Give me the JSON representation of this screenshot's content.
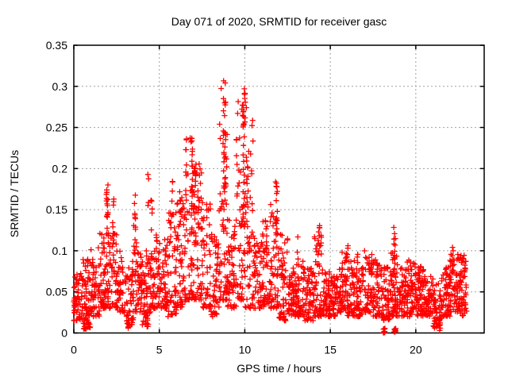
{
  "chart_data": {
    "type": "scatter",
    "title": "Day 071 of 2020, SRMTID for receiver gasc",
    "xlabel": "GPS time / hours",
    "ylabel": "SRMTID / TECUs",
    "xlim": [
      0,
      24
    ],
    "ylim": [
      0,
      0.35
    ],
    "xticks": [
      0,
      5,
      10,
      15,
      20
    ],
    "xtick_labels": [
      "0",
      "5",
      "10",
      "15",
      "20"
    ],
    "yticks": [
      0,
      0.05,
      0.1,
      0.15,
      0.2,
      0.25,
      0.3,
      0.35
    ],
    "ytick_labels": [
      "0",
      "0.05",
      "0.1",
      "0.15",
      "0.2",
      "0.25",
      "0.3",
      "0.35"
    ],
    "grid": true,
    "legend": "none",
    "marker": "plus",
    "marker_color": "#ff0000",
    "grid_color": "#a0a0a0",
    "border_color": "#000000",
    "observed_max": {
      "time_hours": 8.8,
      "value_tecu": 0.313
    },
    "data_time_range_hours": [
      0,
      23.0
    ],
    "seed": 20200071,
    "band_bins": [
      [
        0.0,
        0.5,
        60,
        0.015,
        0.075,
        1.5
      ],
      [
        0.5,
        1.0,
        60,
        0.005,
        0.09,
        1.6
      ],
      [
        1.0,
        1.5,
        55,
        0.02,
        0.105,
        1.5
      ],
      [
        1.5,
        2.0,
        55,
        0.03,
        0.13,
        1.5
      ],
      [
        2.0,
        2.5,
        52,
        0.03,
        0.125,
        1.5
      ],
      [
        2.5,
        3.0,
        48,
        0.025,
        0.1,
        1.5
      ],
      [
        3.0,
        3.5,
        48,
        0.01,
        0.09,
        1.5
      ],
      [
        3.5,
        4.0,
        52,
        0.025,
        0.11,
        1.5
      ],
      [
        4.0,
        4.5,
        52,
        0.01,
        0.1,
        1.5
      ],
      [
        4.5,
        5.0,
        54,
        0.03,
        0.12,
        1.5
      ],
      [
        5.0,
        5.5,
        58,
        0.03,
        0.125,
        1.4
      ],
      [
        5.5,
        6.0,
        52,
        0.02,
        0.15,
        1.5
      ],
      [
        6.0,
        6.5,
        52,
        0.03,
        0.175,
        1.6
      ],
      [
        6.5,
        7.0,
        56,
        0.04,
        0.24,
        1.8
      ],
      [
        7.0,
        7.5,
        52,
        0.04,
        0.21,
        1.8
      ],
      [
        7.5,
        8.0,
        48,
        0.03,
        0.16,
        1.6
      ],
      [
        8.0,
        8.5,
        44,
        0.02,
        0.12,
        1.5
      ],
      [
        8.5,
        9.0,
        56,
        0.04,
        0.3,
        1.9
      ],
      [
        9.0,
        9.5,
        46,
        0.03,
        0.14,
        1.6
      ],
      [
        9.5,
        10.0,
        56,
        0.04,
        0.29,
        1.9
      ],
      [
        10.0,
        10.5,
        50,
        0.03,
        0.28,
        2.1
      ],
      [
        10.5,
        11.0,
        48,
        0.03,
        0.12,
        1.5
      ],
      [
        11.0,
        11.5,
        52,
        0.03,
        0.14,
        1.5
      ],
      [
        11.5,
        12.0,
        52,
        0.03,
        0.17,
        1.7
      ],
      [
        12.0,
        12.5,
        52,
        0.015,
        0.12,
        1.6
      ],
      [
        12.5,
        13.0,
        56,
        0.02,
        0.08,
        1.4
      ],
      [
        13.0,
        13.5,
        52,
        0.02,
        0.09,
        1.5
      ],
      [
        13.5,
        14.0,
        52,
        0.015,
        0.08,
        1.4
      ],
      [
        14.0,
        14.5,
        52,
        0.02,
        0.12,
        1.6
      ],
      [
        14.5,
        15.0,
        52,
        0.02,
        0.08,
        1.4
      ],
      [
        15.0,
        15.5,
        52,
        0.02,
        0.07,
        1.3
      ],
      [
        15.5,
        16.0,
        56,
        0.025,
        0.1,
        1.5
      ],
      [
        16.0,
        16.5,
        52,
        0.02,
        0.09,
        1.4
      ],
      [
        16.5,
        17.0,
        52,
        0.02,
        0.08,
        1.4
      ],
      [
        17.0,
        17.5,
        52,
        0.025,
        0.1,
        1.5
      ],
      [
        17.5,
        18.0,
        52,
        0.02,
        0.09,
        1.4
      ],
      [
        18.0,
        18.5,
        52,
        0.015,
        0.08,
        1.4
      ],
      [
        18.5,
        19.0,
        56,
        0.02,
        0.11,
        1.6
      ],
      [
        19.0,
        19.5,
        52,
        0.02,
        0.08,
        1.4
      ],
      [
        19.5,
        20.0,
        56,
        0.02,
        0.09,
        1.4
      ],
      [
        20.0,
        20.5,
        56,
        0.02,
        0.08,
        1.4
      ],
      [
        20.5,
        21.0,
        52,
        0.02,
        0.07,
        1.3
      ],
      [
        21.0,
        21.5,
        46,
        0.005,
        0.06,
        1.3
      ],
      [
        21.5,
        22.0,
        52,
        0.02,
        0.08,
        1.4
      ],
      [
        22.0,
        22.5,
        56,
        0.025,
        0.1,
        1.4
      ],
      [
        22.5,
        23.0,
        62,
        0.02,
        0.095,
        1.3
      ]
    ],
    "spike_columns": [
      [
        0.85,
        0.06,
        8,
        0.003,
        0.025
      ],
      [
        1.95,
        0.05,
        14,
        0.13,
        0.19
      ],
      [
        2.3,
        0.04,
        6,
        0.12,
        0.165
      ],
      [
        3.2,
        0.04,
        6,
        0.005,
        0.025
      ],
      [
        3.55,
        0.06,
        12,
        0.1,
        0.17
      ],
      [
        4.3,
        0.04,
        6,
        0.005,
        0.025
      ],
      [
        4.35,
        0.03,
        4,
        0.15,
        0.2
      ],
      [
        4.55,
        0.04,
        5,
        0.12,
        0.168
      ],
      [
        5.75,
        0.04,
        6,
        0.13,
        0.19
      ],
      [
        6.25,
        0.08,
        8,
        0.14,
        0.18
      ],
      [
        6.87,
        0.07,
        18,
        0.15,
        0.253
      ],
      [
        7.1,
        0.06,
        14,
        0.1,
        0.205
      ],
      [
        7.3,
        0.05,
        8,
        0.12,
        0.185
      ],
      [
        8.8,
        0.08,
        32,
        0.12,
        0.313
      ],
      [
        9.4,
        0.05,
        6,
        0.1,
        0.135
      ],
      [
        9.95,
        0.08,
        30,
        0.12,
        0.3
      ],
      [
        10.15,
        0.05,
        10,
        0.1,
        0.22
      ],
      [
        11.85,
        0.06,
        14,
        0.1,
        0.2
      ],
      [
        13.1,
        0.03,
        3,
        0.09,
        0.12
      ],
      [
        14.35,
        0.06,
        8,
        0.08,
        0.135
      ],
      [
        16.0,
        0.04,
        4,
        0.08,
        0.122
      ],
      [
        16.6,
        0.03,
        3,
        0.07,
        0.105
      ],
      [
        17.4,
        0.04,
        4,
        0.07,
        0.1
      ],
      [
        18.15,
        0.05,
        10,
        0.0,
        0.006
      ],
      [
        18.75,
        0.06,
        12,
        0.05,
        0.142
      ],
      [
        18.78,
        0.05,
        10,
        0.0,
        0.006
      ],
      [
        20.3,
        0.04,
        4,
        0.06,
        0.09
      ],
      [
        21.4,
        0.04,
        8,
        0.0,
        0.02
      ],
      [
        22.15,
        0.04,
        6,
        0.06,
        0.11
      ]
    ]
  }
}
